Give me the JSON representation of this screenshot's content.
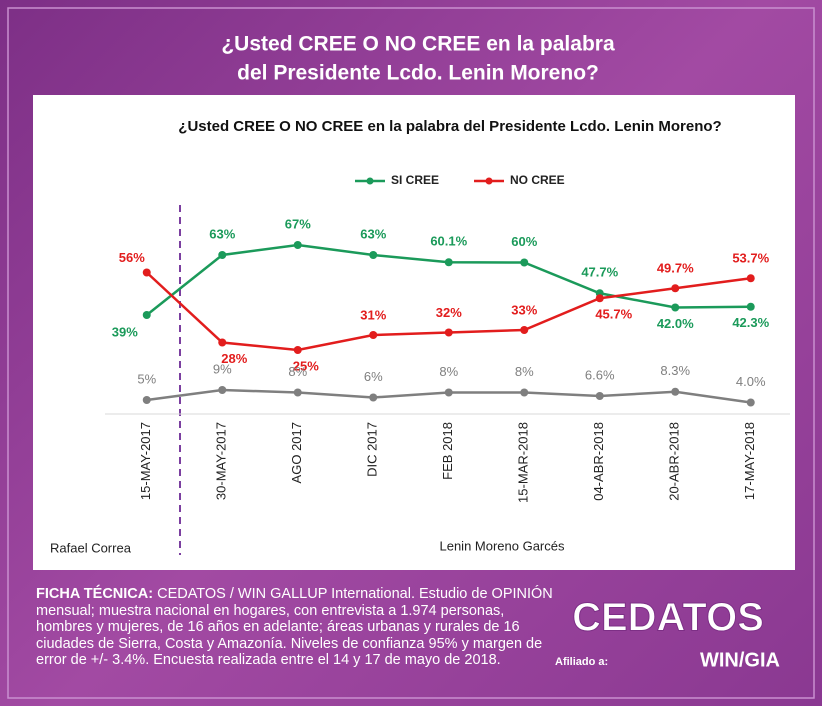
{
  "header": {
    "title_lines": [
      "¿Usted CREE O NO CREE en la palabra",
      "del Presidente Lcdo. Lenin Moreno?"
    ]
  },
  "chart_data": {
    "type": "line",
    "title": "¿Usted CREE O NO CREE en la palabra del Presidente Lcdo. Lenin Moreno?",
    "categories": [
      "15-MAY-2017",
      "30-MAY-2017",
      "AGO 2017",
      "DIC 2017",
      "FEB 2018",
      "15-MAR-2018",
      "04-ABR-2018",
      "20-ABR-2018",
      "17-MAY-2018"
    ],
    "series": [
      {
        "name": "SI CREE",
        "color": "#1b9a5a",
        "values": [
          39,
          63,
          67,
          63,
          60.1,
          60,
          47.7,
          42.0,
          42.3
        ],
        "value_labels": [
          "39%",
          "63%",
          "67%",
          "63%",
          "60.1%",
          "60%",
          "47.7%",
          "42.0%",
          "42.3%"
        ]
      },
      {
        "name": "NO CREE",
        "color": "#e21d1d",
        "values": [
          56,
          28,
          25,
          31,
          32,
          33,
          45.7,
          49.7,
          53.7
        ],
        "value_labels": [
          "56%",
          "28%",
          "25%",
          "31%",
          "32%",
          "33%",
          "45.7%",
          "49.7%",
          "53.7%"
        ]
      },
      {
        "color": "#7f7f7f",
        "values": [
          5,
          9,
          8,
          6,
          8,
          8,
          6.6,
          8.3,
          4.0
        ],
        "value_labels": [
          "5%",
          "9%",
          "8%",
          "6%",
          "8%",
          "8%",
          "6.6%",
          "8.3%",
          "4.0%"
        ]
      }
    ],
    "ylim": [
      0,
      75
    ],
    "annotations": [
      "Rafael Correa",
      "Lenin Moreno Garcés"
    ]
  },
  "footer": {
    "ficha_label": "FICHA TÉCNICA:",
    "ficha_text": "CEDATOS / WIN GALLUP International. Estudio de OPINIÓN mensual; muestra nacional en hogares, con entrevista a 1.974 personas, hombres y mujeres, de 16 años en adelante; áreas urbanas y rurales de 16 ciudades de Sierra, Costa y Amazonía. Niveles de confianza 95% y margen de error de +/- 3.4%. Encuesta realizada entre el 14 y 17 de mayo de 2018.",
    "logo": "CEDATOS",
    "affiliate_label": "Afiliado a:",
    "affiliate": "WIN/GIA"
  }
}
